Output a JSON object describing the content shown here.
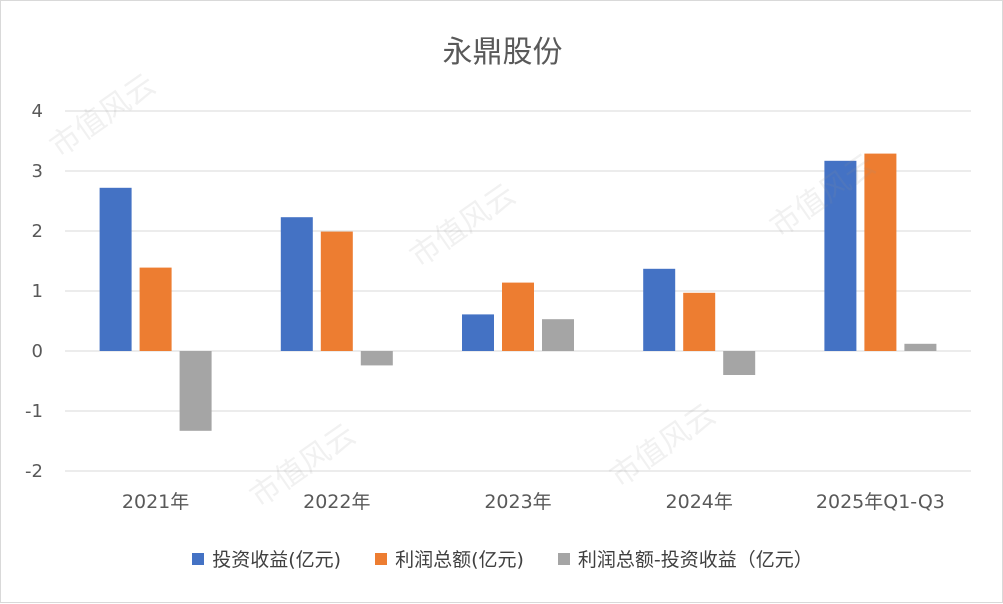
{
  "chart_data": {
    "type": "bar",
    "title": "永鼎股份",
    "categories": [
      "2021年",
      "2022年",
      "2023年",
      "2024年",
      "2025年Q1-Q3"
    ],
    "series": [
      {
        "name": "投资收益(亿元)",
        "color": "#4472c4",
        "values": [
          2.72,
          2.23,
          0.61,
          1.37,
          3.17
        ]
      },
      {
        "name": "利润总额(亿元)",
        "color": "#ed7d31",
        "values": [
          1.39,
          1.99,
          1.14,
          0.97,
          3.29
        ]
      },
      {
        "name": "利润总额-投资收益（亿元）",
        "color": "#a5a5a5",
        "values": [
          -1.33,
          -0.24,
          0.53,
          -0.4,
          0.12
        ]
      }
    ],
    "ylim": [
      -2,
      4
    ],
    "yticks": [
      4,
      3,
      2,
      1,
      0,
      -1,
      -2
    ],
    "grid": true,
    "legend_position": "bottom"
  },
  "watermark": "市值风云"
}
